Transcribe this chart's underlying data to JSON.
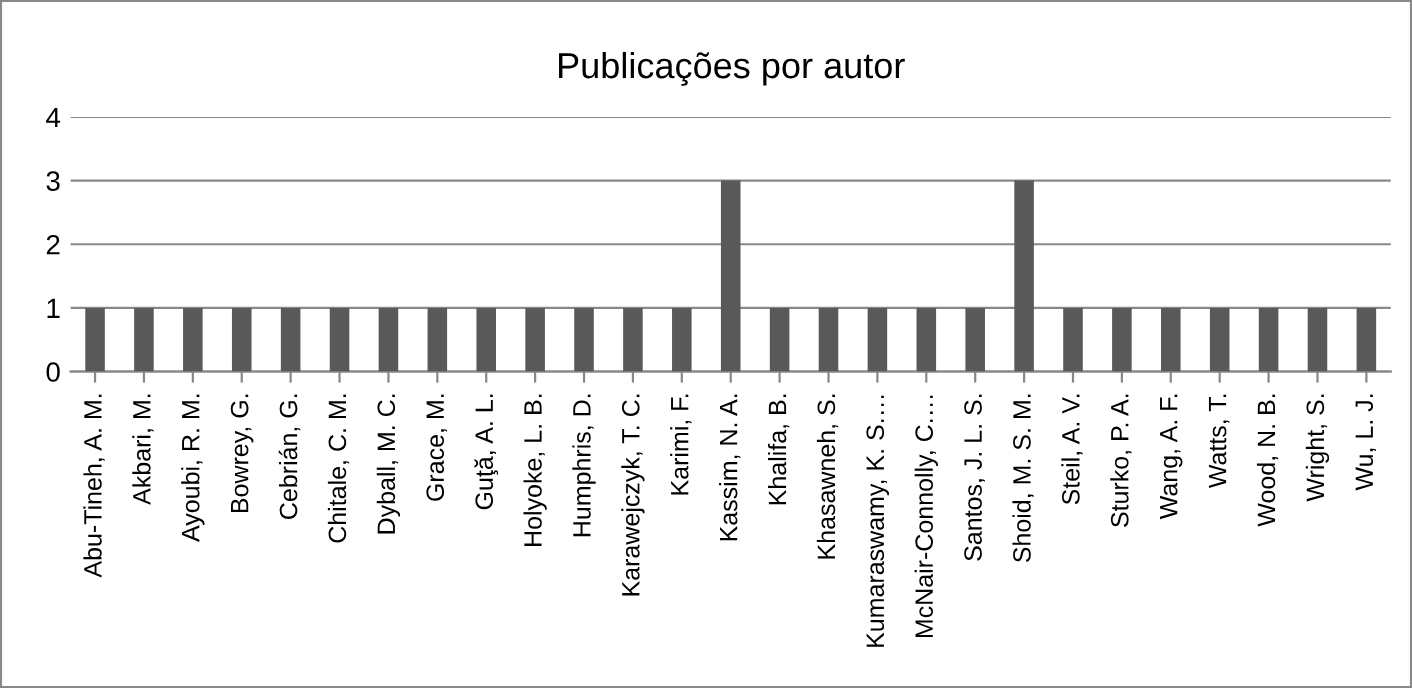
{
  "chart_data": {
    "type": "bar",
    "title": "Publicações por autor",
    "categories": [
      "Abu-Tineh, A. M.",
      "Akbari, M.",
      "Ayoubi, R. M.",
      "Bowrey, G.",
      "Cebrián, G.",
      "Chitale, C. M.",
      "Dyball, M. C.",
      "Grace, M.",
      "Guţă, A. L.",
      "Holyoke, L. B.",
      "Humphris, D.",
      "Karawejczyk, T. C.",
      "Karimi, F.",
      "Kassim, N. A.",
      "Khalifa, B.",
      "Khasawneh, S.",
      "Kumaraswamy, K. S.…",
      "McNair-Connolly, C.…",
      "Santos, J. L. S.",
      "Shoid, M. S. M.",
      "Steil, A. V.",
      "Sturko, P. A.",
      "Wang, A. F.",
      "Watts, T.",
      "Wood, N. B.",
      "Wright, S.",
      "Wu, L. J."
    ],
    "values": [
      1,
      1,
      1,
      1,
      1,
      1,
      1,
      1,
      1,
      1,
      1,
      1,
      1,
      3,
      1,
      1,
      1,
      1,
      1,
      3,
      1,
      1,
      1,
      1,
      1,
      1,
      1
    ],
    "color": "#595959",
    "ylim": [
      0,
      4
    ],
    "yticks": [
      0,
      1,
      2,
      3,
      4
    ],
    "grid": "y",
    "legend": false
  }
}
